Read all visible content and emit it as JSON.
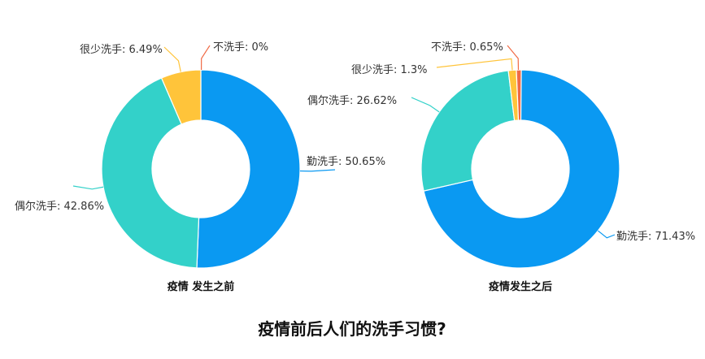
{
  "title": "疫情前后人们的洗手习惯?",
  "chart_data": [
    {
      "type": "pie",
      "title": "疫情 发生之前",
      "categories": [
        "勤洗手",
        "偶尔洗手",
        "很少洗手",
        "不洗手"
      ],
      "values": [
        50.65,
        42.86,
        6.49,
        0
      ],
      "labels": [
        "勤洗手: 50.65%",
        "偶尔洗手: 42.86%",
        "很少洗手: 6.49%",
        "不洗手: 0%"
      ],
      "colors": [
        "#0A99F2",
        "#33D1C9",
        "#FFC43A",
        "#F06A45"
      ]
    },
    {
      "type": "pie",
      "title": "疫情发生之后",
      "categories": [
        "勤洗手",
        "偶尔洗手",
        "很少洗手",
        "不洗手"
      ],
      "values": [
        71.43,
        26.62,
        1.3,
        0.65
      ],
      "labels": [
        "勤洗手: 71.43%",
        "偶尔洗手: 26.62%",
        "很少洗手: 1.3%",
        "不洗手: 0.65%"
      ],
      "colors": [
        "#0A99F2",
        "#33D1C9",
        "#FFC43A",
        "#F06A45"
      ]
    }
  ]
}
